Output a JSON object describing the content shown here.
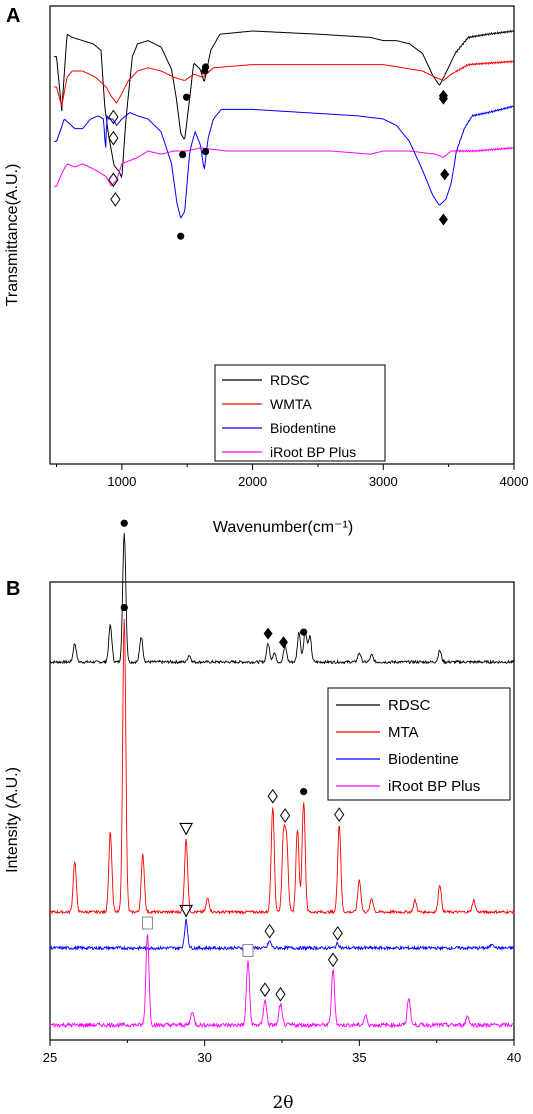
{
  "figure": {
    "panel_a_letter": "A",
    "panel_b_letter": "B"
  },
  "chart_data": [
    {
      "type": "line",
      "panel": "A",
      "xlabel": "Wavenumber(cm⁻¹)",
      "ylabel": "Transmittance(A.U.)",
      "xlim": [
        450,
        4000
      ],
      "xticks": [
        1000,
        2000,
        3000,
        4000
      ],
      "ytick_labels_shown": false,
      "legend": {
        "location": "bottom-center",
        "entries": [
          "RDSC",
          "WMTA",
          "Biodentine",
          "iRoot BP Plus"
        ]
      },
      "series": [
        {
          "name": "RDSC",
          "color": "#000000",
          "offset": 0,
          "x": [
            500,
            540,
            580,
            620,
            700,
            780,
            840,
            870,
            900,
            940,
            980,
            1000,
            1030,
            1080,
            1120,
            1200,
            1300,
            1380,
            1420,
            1450,
            1480,
            1510,
            1550,
            1600,
            1630,
            1680,
            1750,
            2000,
            2500,
            2900,
            3000,
            3100,
            3200,
            3300,
            3380,
            3430,
            3480,
            3550,
            3650,
            3800,
            4000
          ],
          "y": [
            8,
            25,
            1,
            2,
            3,
            4,
            6,
            24,
            33,
            42,
            44,
            46,
            28,
            8,
            4,
            3,
            5,
            12,
            22,
            32,
            34,
            24,
            10,
            12,
            16,
            6,
            1,
            0,
            1,
            2,
            3,
            3,
            4,
            7,
            14,
            17,
            13,
            7,
            2,
            1,
            0
          ]
        },
        {
          "name": "WMTA",
          "color": "#ff0000",
          "offset": 9.5,
          "x": [
            500,
            540,
            580,
            620,
            700,
            800,
            880,
            920,
            960,
            1000,
            1050,
            1120,
            1200,
            1300,
            1400,
            1480,
            1550,
            1620,
            1700,
            2000,
            2500,
            3000,
            3300,
            3400,
            3460,
            3520,
            3650,
            4000
          ],
          "y": [
            8,
            14,
            5,
            3,
            3,
            5,
            8,
            11,
            13,
            10,
            6,
            3,
            2,
            3,
            5,
            6,
            4,
            5,
            2,
            1,
            1,
            1,
            3,
            5,
            6,
            4,
            1,
            0
          ]
        },
        {
          "name": "Biodentine",
          "color": "#0000ff",
          "offset": 23.5,
          "x": [
            500,
            560,
            640,
            700,
            760,
            820,
            860,
            875,
            885,
            900,
            930,
            960,
            1000,
            1060,
            1120,
            1200,
            1300,
            1380,
            1420,
            1450,
            1480,
            1520,
            1560,
            1600,
            1630,
            1660,
            1700,
            1760,
            2000,
            2400,
            2800,
            3000,
            3100,
            3200,
            3300,
            3380,
            3430,
            3480,
            3520,
            3560,
            3620,
            3680,
            3800,
            4000
          ],
          "y": [
            11,
            4,
            7,
            7,
            4,
            3,
            4,
            14,
            3,
            4,
            4,
            6,
            4,
            2,
            3,
            4,
            8,
            18,
            30,
            35,
            33,
            14,
            8,
            12,
            20,
            10,
            4,
            1,
            1,
            2,
            3,
            4,
            6,
            11,
            20,
            28,
            31,
            29,
            24,
            14,
            7,
            3,
            2,
            0
          ]
        },
        {
          "name": "iRoot BP Plus",
          "color": "#ff00ff",
          "offset": 36.5,
          "x": [
            500,
            540,
            580,
            640,
            700,
            800,
            880,
            920,
            960,
            1000,
            1060,
            1120,
            1200,
            1300,
            1400,
            1500,
            1600,
            1800,
            2200,
            2600,
            2900,
            3000,
            3200,
            3400,
            3460,
            3520,
            3700,
            4000
          ],
          "y": [
            12,
            8,
            5,
            6,
            5,
            7,
            9,
            12,
            10,
            5,
            4,
            3,
            1,
            2,
            1,
            1,
            0,
            1,
            1,
            1,
            2,
            1,
            1,
            2,
            3,
            1,
            1,
            0
          ]
        }
      ],
      "annotations": [
        {
          "symbol": "◇",
          "series": "RDSC",
          "x": 935
        },
        {
          "symbol": "●",
          "series": "RDSC",
          "x": 1465
        },
        {
          "symbol": "●",
          "series": "RDSC",
          "x": 1635
        },
        {
          "symbol": "◆",
          "series": "RDSC",
          "x": 3460
        },
        {
          "symbol": "◇",
          "series": "WMTA",
          "x": 935
        },
        {
          "symbol": "●",
          "series": "WMTA",
          "x": 1495
        },
        {
          "symbol": "●",
          "series": "WMTA",
          "x": 1640
        },
        {
          "symbol": "◆",
          "series": "WMTA",
          "x": 3460
        },
        {
          "symbol": "◇",
          "series": "Biodentine",
          "x": 935
        },
        {
          "symbol": "●",
          "series": "Biodentine",
          "x": 1450
        },
        {
          "symbol": "●",
          "series": "Biodentine",
          "x": 1640
        },
        {
          "symbol": "◆",
          "series": "Biodentine",
          "x": 3460
        },
        {
          "symbol": "◇",
          "series": "iRoot BP Plus",
          "x": 950
        },
        {
          "symbol": "◆",
          "series": "iRoot BP Plus",
          "x": 3470
        }
      ]
    },
    {
      "type": "line",
      "panel": "B",
      "xlabel": "2θ",
      "ylabel": "Intensity (A.U.)",
      "xlim": [
        25,
        40
      ],
      "xticks": [
        25,
        30,
        35,
        40
      ],
      "ytick_labels_shown": false,
      "legend": {
        "location": "top-right",
        "entries": [
          "RDSC",
          "MTA",
          "Biodentine",
          "iRoot BP Plus"
        ]
      },
      "series": [
        {
          "name": "RDSC",
          "color": "#000000",
          "baseline": 0,
          "noise": 0.6,
          "peaks": [
            [
              25.8,
              8
            ],
            [
              26.95,
              16
            ],
            [
              27.4,
              56
            ],
            [
              27.95,
              11
            ],
            [
              29.5,
              3
            ],
            [
              32.05,
              8
            ],
            [
              32.25,
              4
            ],
            [
              32.6,
              7
            ],
            [
              33.05,
              13
            ],
            [
              33.25,
              14
            ],
            [
              33.4,
              11
            ],
            [
              35.0,
              4
            ],
            [
              35.4,
              3
            ],
            [
              37.6,
              5
            ]
          ]
        },
        {
          "name": "MTA",
          "color": "#ff0000",
          "baseline": 0,
          "noise": 0.6,
          "peaks": [
            [
              25.8,
              22
            ],
            [
              26.95,
              35
            ],
            [
              27.4,
              128
            ],
            [
              28.0,
              25
            ],
            [
              29.4,
              32
            ],
            [
              30.1,
              6
            ],
            [
              32.2,
              46
            ],
            [
              32.55,
              32
            ],
            [
              32.65,
              30
            ],
            [
              33.0,
              36
            ],
            [
              33.2,
              48
            ],
            [
              34.35,
              38
            ],
            [
              35.0,
              14
            ],
            [
              35.4,
              6
            ],
            [
              36.8,
              5
            ],
            [
              37.6,
              12
            ],
            [
              38.7,
              5
            ]
          ]
        },
        {
          "name": "Biodentine",
          "color": "#0000ff",
          "baseline": 0,
          "noise": 0.7,
          "peaks": [
            [
              29.4,
              12
            ],
            [
              32.1,
              3
            ],
            [
              34.3,
              2
            ],
            [
              39.3,
              2
            ]
          ]
        },
        {
          "name": "iRoot BP Plus",
          "color": "#ff00ff",
          "baseline": 0,
          "noise": 0.9,
          "peaks": [
            [
              28.15,
              40
            ],
            [
              29.6,
              6
            ],
            [
              31.4,
              28
            ],
            [
              31.95,
              11
            ],
            [
              32.45,
              9
            ],
            [
              34.15,
              24
            ],
            [
              35.2,
              4
            ],
            [
              36.6,
              12
            ],
            [
              38.5,
              4
            ]
          ]
        }
      ],
      "annotations": [
        {
          "symbol": "●",
          "series": "RDSC",
          "x": 27.4
        },
        {
          "symbol": "◆",
          "series": "RDSC",
          "x": 32.05
        },
        {
          "symbol": "◆",
          "series": "RDSC",
          "x": 32.55
        },
        {
          "symbol": "●",
          "series": "RDSC",
          "x": 33.2
        },
        {
          "symbol": "●",
          "series": "MTA",
          "x": 27.4
        },
        {
          "symbol": "▽",
          "series": "MTA",
          "x": 29.4
        },
        {
          "symbol": "◇",
          "series": "MTA",
          "x": 32.2
        },
        {
          "symbol": "◇",
          "series": "MTA",
          "x": 32.6
        },
        {
          "symbol": "●",
          "series": "MTA",
          "x": 33.2
        },
        {
          "symbol": "◇",
          "series": "MTA",
          "x": 34.35
        },
        {
          "symbol": "▽",
          "series": "Biodentine",
          "x": 29.4
        },
        {
          "symbol": "◇",
          "series": "Biodentine",
          "x": 32.1
        },
        {
          "symbol": "◇",
          "series": "Biodentine",
          "x": 34.3
        },
        {
          "symbol": "□",
          "series": "iRoot BP Plus",
          "x": 28.15
        },
        {
          "symbol": "□",
          "series": "iRoot BP Plus",
          "x": 31.4
        },
        {
          "symbol": "◇",
          "series": "iRoot BP Plus",
          "x": 31.95
        },
        {
          "symbol": "◇",
          "series": "iRoot BP Plus",
          "x": 32.45
        },
        {
          "symbol": "◇",
          "series": "iRoot BP Plus",
          "x": 34.15
        }
      ]
    }
  ]
}
